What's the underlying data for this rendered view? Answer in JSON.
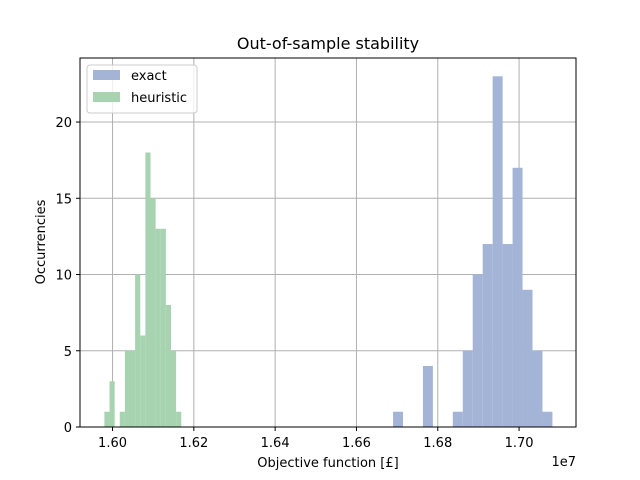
{
  "chart_data": {
    "type": "histogram",
    "title": "Out-of-sample stability",
    "xlabel": "Objective function [£]",
    "ylabel": "Occurrencies",
    "x_offset_label": "1e7",
    "xlim": [
      15.92,
      17.14
    ],
    "ylim": [
      0,
      24.2
    ],
    "grid": true,
    "legend_position": "top-left",
    "x_ticks": [
      16.0,
      16.2,
      16.4,
      16.6,
      16.8,
      17.0
    ],
    "x_tick_labels": [
      "1.60",
      "1.62",
      "1.64",
      "1.66",
      "1.68",
      "1.70"
    ],
    "y_ticks": [
      0,
      5,
      10,
      15,
      20
    ],
    "y_tick_labels": [
      "0",
      "5",
      "10",
      "15",
      "20"
    ],
    "series": [
      {
        "name": "exact",
        "color": "#a3b4d6",
        "bin_start": 16.69,
        "bin_width": 0.0245,
        "counts": [
          1,
          0,
          0,
          4,
          0,
          0,
          1,
          5,
          10,
          12,
          23,
          12,
          17,
          9,
          5,
          1
        ]
      },
      {
        "name": "heuristic",
        "color": "#a7d3b1",
        "bin_start": 15.98,
        "bin_width": 0.0126,
        "counts": [
          1,
          3,
          0,
          1,
          5,
          5,
          10,
          6,
          18,
          15,
          13,
          13,
          8,
          5,
          1
        ]
      }
    ]
  }
}
